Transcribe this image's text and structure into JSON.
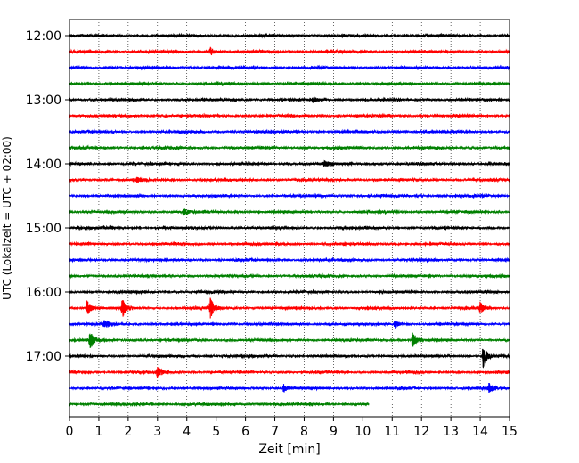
{
  "chart_data": {
    "type": "line",
    "xlabel": "Zeit  [min]",
    "ylabel": "UTC (Lokalzeit = UTC + 02:00)",
    "xlim": [
      0,
      15
    ],
    "x_ticks": [
      "0",
      "1",
      "2",
      "3",
      "4",
      "5",
      "6",
      "7",
      "8",
      "9",
      "10",
      "11",
      "12",
      "13",
      "14",
      "15"
    ],
    "y_tick_labels": [
      "12:00",
      "13:00",
      "14:00",
      "15:00",
      "16:00",
      "17:00"
    ],
    "grid": "vertical dotted at each minute",
    "trace_interval_minutes": 15,
    "trace_start": "12:00",
    "trace_count": 24,
    "last_trace_end_minute": 10.2,
    "colors": [
      "#000000",
      "#ff0000",
      "#0000ff",
      "#008000"
    ],
    "events": [
      {
        "trace": 1,
        "minute": 4.8,
        "amplitude": 0.55
      },
      {
        "trace": 4,
        "minute": 8.3,
        "amplitude": 0.35
      },
      {
        "trace": 8,
        "minute": 8.7,
        "amplitude": 0.3
      },
      {
        "trace": 9,
        "minute": 2.3,
        "amplitude": 0.3
      },
      {
        "trace": 11,
        "minute": 3.9,
        "amplitude": 0.35
      },
      {
        "trace": 17,
        "minute": 0.6,
        "amplitude": 0.9
      },
      {
        "trace": 17,
        "minute": 1.8,
        "amplitude": 1.1
      },
      {
        "trace": 17,
        "minute": 4.8,
        "amplitude": 1.2
      },
      {
        "trace": 17,
        "minute": 14.0,
        "amplitude": 0.7
      },
      {
        "trace": 18,
        "minute": 1.2,
        "amplitude": 0.5
      },
      {
        "trace": 18,
        "minute": 11.1,
        "amplitude": 0.5
      },
      {
        "trace": 19,
        "minute": 0.7,
        "amplitude": 1.2
      },
      {
        "trace": 19,
        "minute": 11.7,
        "amplitude": 1.0
      },
      {
        "trace": 20,
        "minute": 14.1,
        "amplitude": 1.5
      },
      {
        "trace": 21,
        "minute": 3.0,
        "amplitude": 0.75
      },
      {
        "trace": 22,
        "minute": 7.3,
        "amplitude": 0.5
      },
      {
        "trace": 22,
        "minute": 14.3,
        "amplitude": 0.6
      }
    ]
  }
}
